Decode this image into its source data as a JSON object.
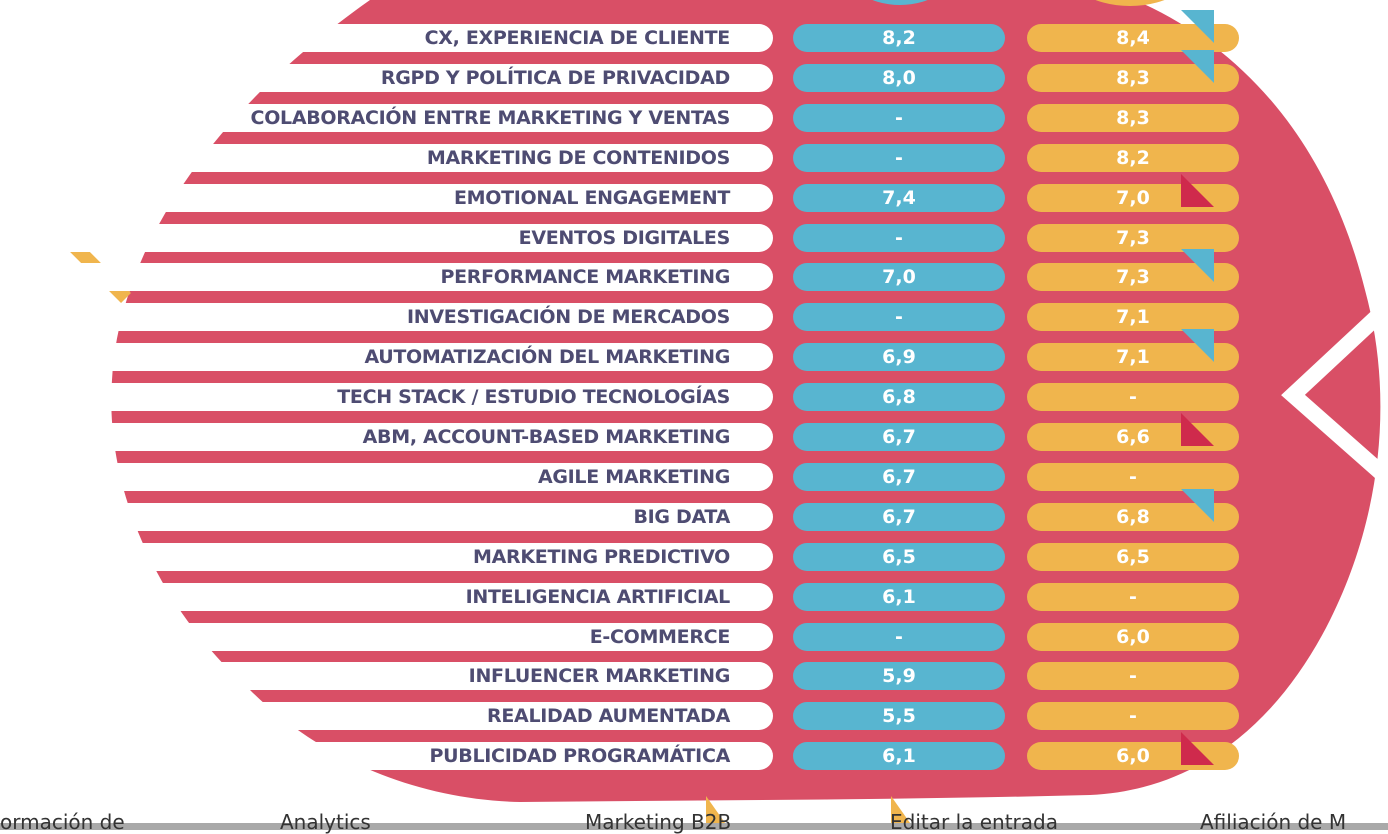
{
  "colors": {
    "blob": "#d94f66",
    "blue": "#58b5d0",
    "yellow": "#f0b54d",
    "text": "#4e4c72",
    "up": "#58b5d0",
    "down": "#cf2a4c"
  },
  "rows": [
    {
      "label": "CX, EXPERIENCIA DE CLIENTE",
      "v1": "8,2",
      "v2": "8,4",
      "trend": "up"
    },
    {
      "label": "RGPD Y POLÍTICA DE PRIVACIDAD",
      "v1": "8,0",
      "v2": "8,3",
      "trend": "up"
    },
    {
      "label": "COLABORACIÓN ENTRE MARKETING Y VENTAS",
      "v1": "-",
      "v2": "8,3",
      "trend": ""
    },
    {
      "label": "MARKETING DE CONTENIDOS",
      "v1": "-",
      "v2": "8,2",
      "trend": ""
    },
    {
      "label": "EMOTIONAL ENGAGEMENT",
      "v1": "7,4",
      "v2": "7,0",
      "trend": "down"
    },
    {
      "label": "EVENTOS DIGITALES",
      "v1": "-",
      "v2": "7,3",
      "trend": ""
    },
    {
      "label": "PERFORMANCE MARKETING",
      "v1": "7,0",
      "v2": "7,3",
      "trend": "up"
    },
    {
      "label": "INVESTIGACIÓN DE MERCADOS",
      "v1": "-",
      "v2": "7,1",
      "trend": ""
    },
    {
      "label": "AUTOMATIZACIÓN DEL MARKETING",
      "v1": "6,9",
      "v2": "7,1",
      "trend": "up"
    },
    {
      "label": "TECH STACK / ESTUDIO TECNOLOGÍAS",
      "v1": "6,8",
      "v2": "-",
      "trend": ""
    },
    {
      "label": "ABM, ACCOUNT-BASED MARKETING",
      "v1": "6,7",
      "v2": "6,6",
      "trend": "down"
    },
    {
      "label": "AGILE MARKETING",
      "v1": "6,7",
      "v2": "-",
      "trend": ""
    },
    {
      "label": "BIG DATA",
      "v1": "6,7",
      "v2": "6,8",
      "trend": "up"
    },
    {
      "label": "MARKETING PREDICTIVO",
      "v1": "6,5",
      "v2": "6,5",
      "trend": ""
    },
    {
      "label": "INTELIGENCIA ARTIFICIAL",
      "v1": "6,1",
      "v2": "-",
      "trend": ""
    },
    {
      "label": "E-COMMERCE",
      "v1": "-",
      "v2": "6,0",
      "trend": ""
    },
    {
      "label": "INFLUENCER MARKETING",
      "v1": "5,9",
      "v2": "-",
      "trend": ""
    },
    {
      "label": "REALIDAD AUMENTADA",
      "v1": "5,5",
      "v2": "-",
      "trend": ""
    },
    {
      "label": "PUBLICIDAD PROGRAMÁTICA",
      "v1": "6,1",
      "v2": "6,0",
      "trend": "down"
    }
  ],
  "tabs": [
    "ormación de",
    "Analytics",
    "Marketing B2B",
    "Editar la entrada",
    "Afiliación de M"
  ]
}
